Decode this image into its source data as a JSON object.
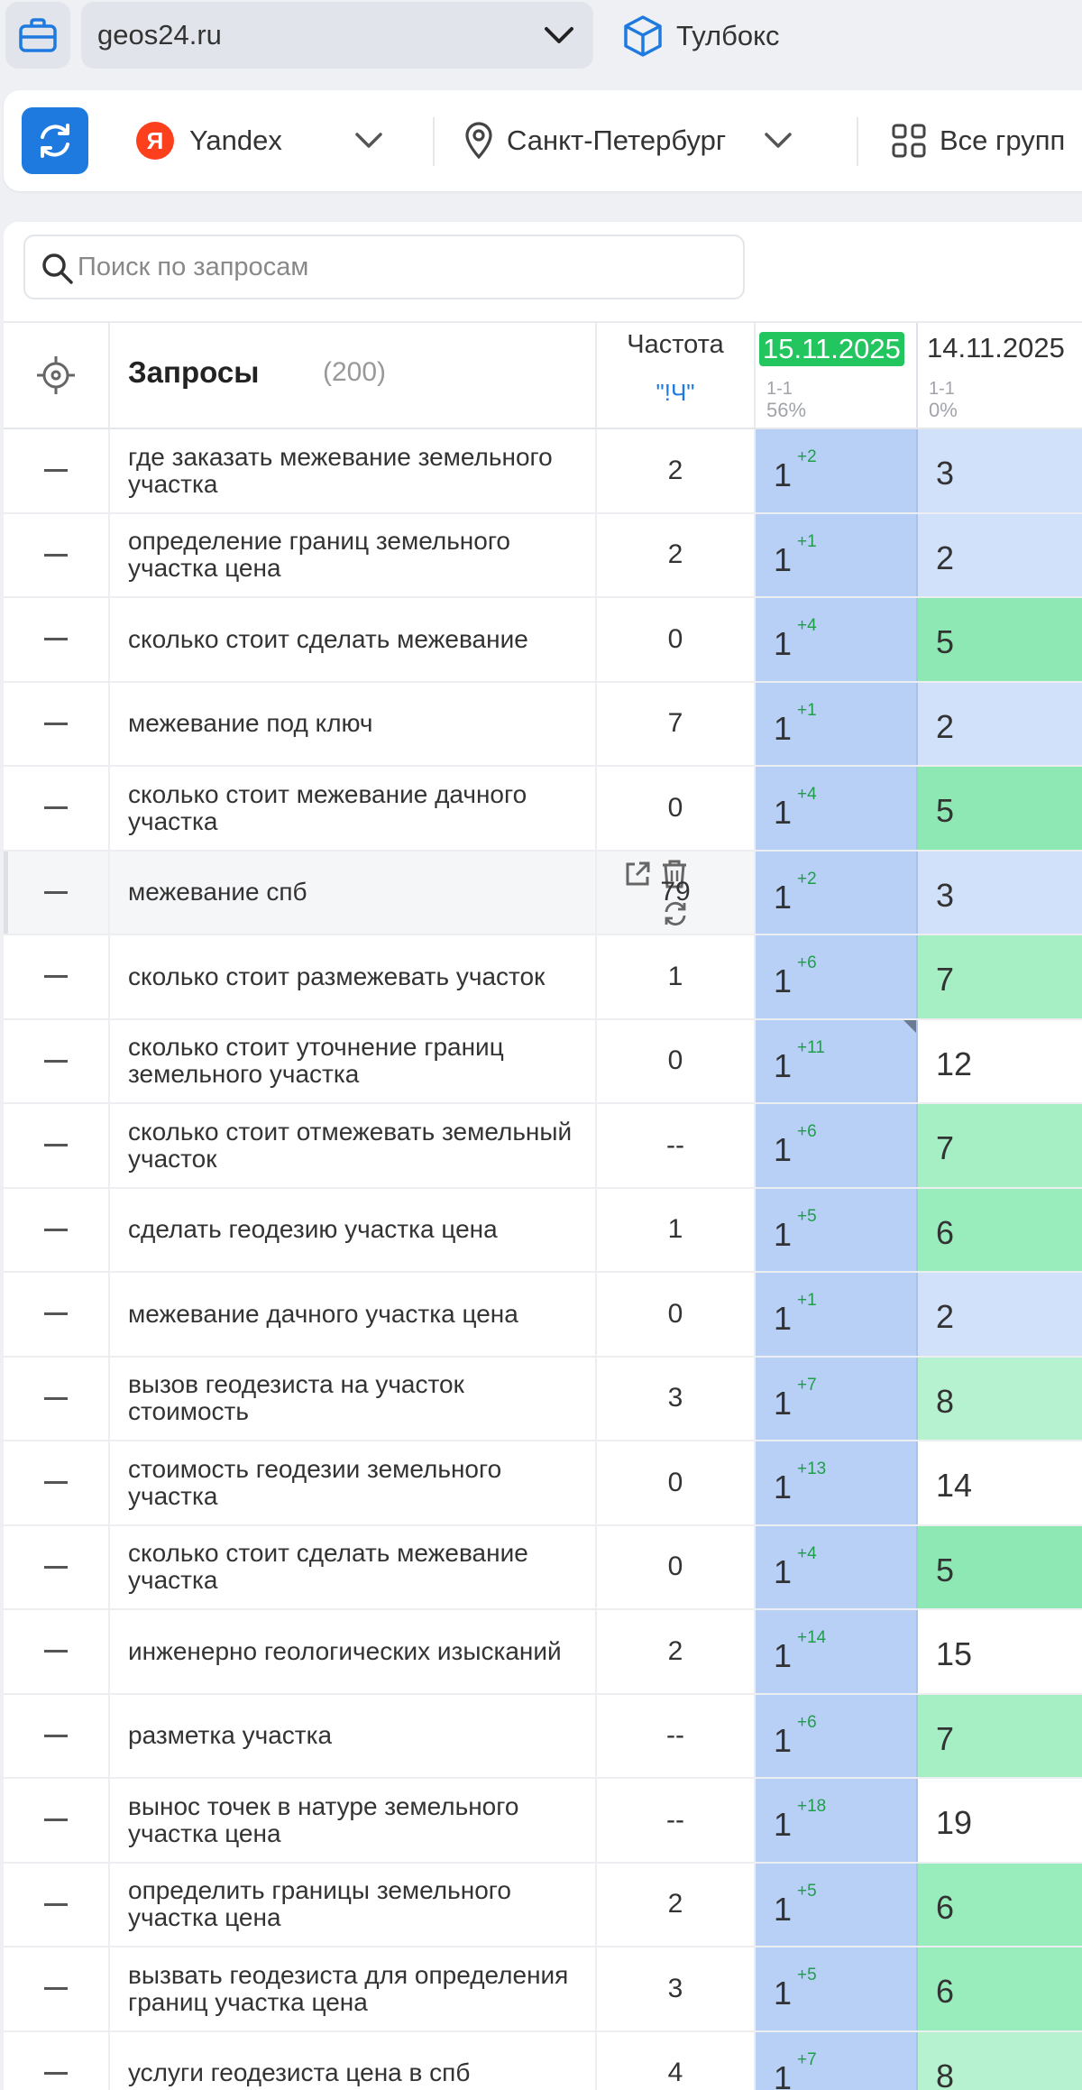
{
  "topbar": {
    "domain": "geos24.ru",
    "toolbox_label": "Тулбокс"
  },
  "filters": {
    "engine": "Yandex",
    "region": "Санкт-Петербург",
    "groups": "Все групп"
  },
  "search": {
    "placeholder": "Поиск по запросам"
  },
  "table": {
    "col_queries": "Запросы",
    "query_count": "(200)",
    "col_freq": "Частота",
    "freq_type": "\"!Ч\"",
    "dates": [
      {
        "date": "15.11.2025",
        "range": "1-1",
        "percent": "56%"
      },
      {
        "date": "14.11.2025",
        "range": "1-1",
        "percent": "0%"
      }
    ]
  },
  "colors": {
    "accent": "#1f7ae0",
    "current_col": "#b8d0f5",
    "improve_strong": "#8ee8b4",
    "improve_mid": "#a6efc4",
    "improve_light": "#c9f6dc",
    "neutral_blue": "#d2e1fa",
    "date_badge": "#22c55e"
  },
  "rows": [
    {
      "query": "где заказать межевание земельного участка",
      "freq": "2",
      "pos": "1",
      "delta": "+2",
      "prev": "3",
      "prev_color": "#d2e1fa"
    },
    {
      "query": "определение границ земельного участка цена",
      "freq": "2",
      "pos": "1",
      "delta": "+1",
      "prev": "2",
      "prev_color": "#d2e1fa"
    },
    {
      "query": "сколько стоит сделать межевание",
      "freq": "0",
      "pos": "1",
      "delta": "+4",
      "prev": "5",
      "prev_color": "#8ee8b4"
    },
    {
      "query": "межевание под ключ",
      "freq": "7",
      "pos": "1",
      "delta": "+1",
      "prev": "2",
      "prev_color": "#d2e1fa"
    },
    {
      "query": "сколько стоит межевание дачного участка",
      "freq": "0",
      "pos": "1",
      "delta": "+4",
      "prev": "5",
      "prev_color": "#8ee8b4"
    },
    {
      "query": "межевание спб",
      "freq": "79",
      "pos": "1",
      "delta": "+2",
      "prev": "3",
      "prev_color": "#d2e1fa",
      "hovered": true
    },
    {
      "query": "сколько стоит размежевать участок",
      "freq": "1",
      "pos": "1",
      "delta": "+6",
      "prev": "7",
      "prev_color": "#a6efc4"
    },
    {
      "query": "сколько стоит уточнение границ земельного участка",
      "freq": "0",
      "pos": "1",
      "delta": "+11",
      "prev": "12",
      "prev_color": "#ffffff",
      "corner": true
    },
    {
      "query": "сколько стоит отмежевать земельный участок",
      "freq": "--",
      "pos": "1",
      "delta": "+6",
      "prev": "7",
      "prev_color": "#a6efc4"
    },
    {
      "query": "сделать геодезию участка цена",
      "freq": "1",
      "pos": "1",
      "delta": "+5",
      "prev": "6",
      "prev_color": "#99ecbc"
    },
    {
      "query": "межевание дачного участка цена",
      "freq": "0",
      "pos": "1",
      "delta": "+1",
      "prev": "2",
      "prev_color": "#d2e1fa"
    },
    {
      "query": "вызов геодезиста на участок стоимость",
      "freq": "3",
      "pos": "1",
      "delta": "+7",
      "prev": "8",
      "prev_color": "#b6f2cf"
    },
    {
      "query": "стоимость геодезии земельного участка",
      "freq": "0",
      "pos": "1",
      "delta": "+13",
      "prev": "14",
      "prev_color": "#ffffff"
    },
    {
      "query": "сколько стоит сделать межевание участка",
      "freq": "0",
      "pos": "1",
      "delta": "+4",
      "prev": "5",
      "prev_color": "#8ee8b4"
    },
    {
      "query": "инженерно геологических изысканий",
      "freq": "2",
      "pos": "1",
      "delta": "+14",
      "prev": "15",
      "prev_color": "#ffffff"
    },
    {
      "query": "разметка участка",
      "freq": "--",
      "pos": "1",
      "delta": "+6",
      "prev": "7",
      "prev_color": "#a6efc4"
    },
    {
      "query": "вынос точек в натуре земельного участка цена",
      "freq": "--",
      "pos": "1",
      "delta": "+18",
      "prev": "19",
      "prev_color": "#ffffff"
    },
    {
      "query": "определить границы земельного участка цена",
      "freq": "2",
      "pos": "1",
      "delta": "+5",
      "prev": "6",
      "prev_color": "#99ecbc"
    },
    {
      "query": "вызвать геодезиста для определения границ участка цена",
      "freq": "3",
      "pos": "1",
      "delta": "+5",
      "prev": "6",
      "prev_color": "#99ecbc"
    },
    {
      "query": "услуги геодезиста цена в спб",
      "freq": "4",
      "pos": "1",
      "delta": "+7",
      "prev": "8",
      "prev_color": "#b6f2cf"
    }
  ]
}
